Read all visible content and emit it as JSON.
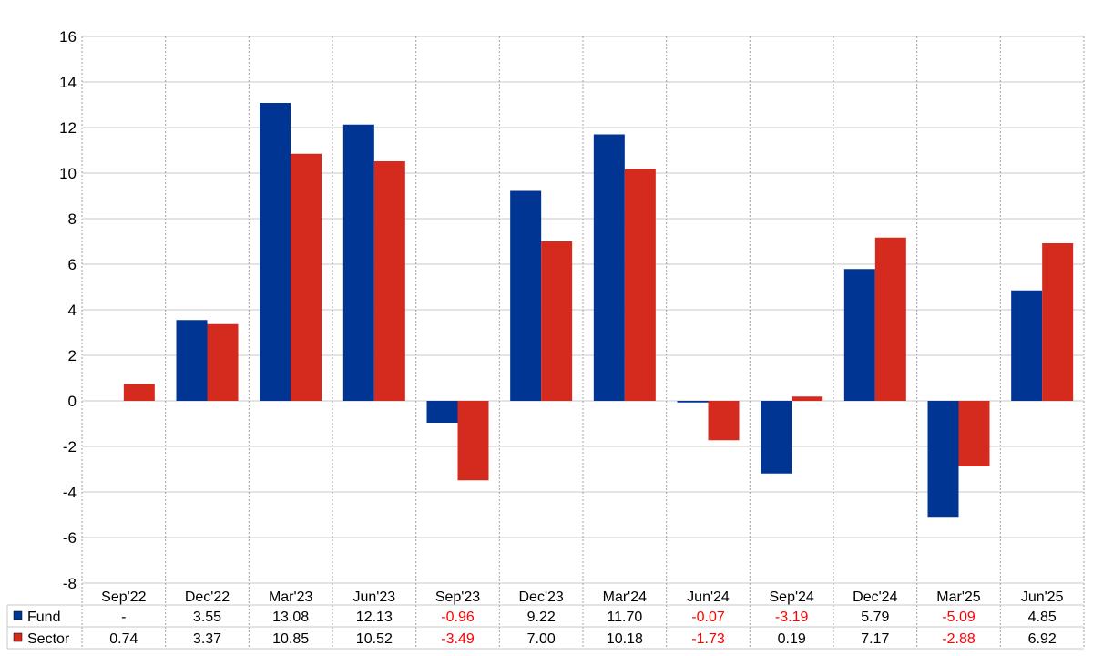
{
  "chart_data": {
    "type": "bar",
    "categories": [
      "Sep'22",
      "Dec'22",
      "Mar'23",
      "Jun'23",
      "Sep'23",
      "Dec'23",
      "Mar'24",
      "Jun'24",
      "Sep'24",
      "Dec'24",
      "Mar'25",
      "Jun'25"
    ],
    "series": [
      {
        "name": "Fund",
        "color": "#003594",
        "values": [
          null,
          3.55,
          13.08,
          12.13,
          -0.96,
          9.22,
          11.7,
          -0.07,
          -3.19,
          5.79,
          -5.09,
          4.85
        ],
        "labels": [
          "-",
          "3.55",
          "13.08",
          "12.13",
          "-0.96",
          "9.22",
          "11.70",
          "-0.07",
          "-3.19",
          "5.79",
          "-5.09",
          "4.85"
        ]
      },
      {
        "name": "Sector",
        "color": "#d52b1e",
        "values": [
          0.74,
          3.37,
          10.85,
          10.52,
          -3.49,
          7.0,
          10.18,
          -1.73,
          0.19,
          7.17,
          -2.88,
          6.92
        ],
        "labels": [
          "0.74",
          "3.37",
          "10.85",
          "10.52",
          "-3.49",
          "7.00",
          "10.18",
          "-1.73",
          "0.19",
          "7.17",
          "-2.88",
          "6.92"
        ]
      }
    ],
    "ylim": [
      -8,
      16
    ],
    "yticks": [
      -8,
      -6,
      -4,
      -2,
      0,
      2,
      4,
      6,
      8,
      10,
      12,
      14,
      16
    ],
    "grid": true,
    "negative_label_color": "#ff0000",
    "legend_placement": "data-table-left"
  }
}
